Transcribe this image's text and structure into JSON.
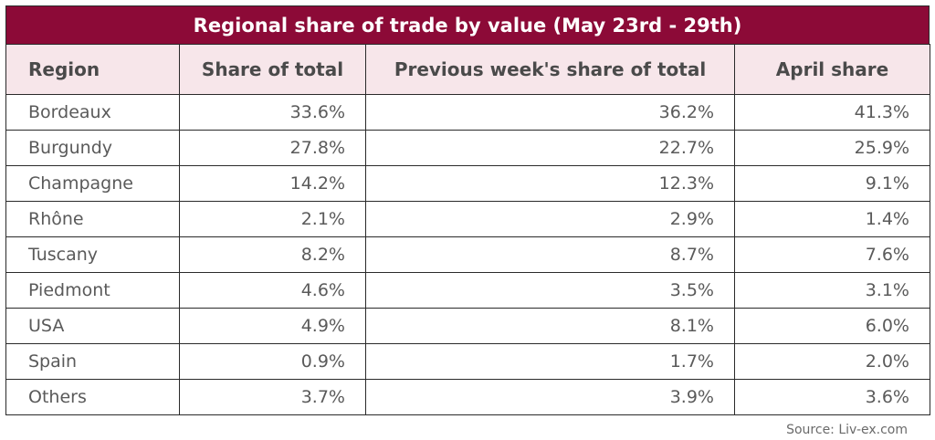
{
  "table": {
    "title": "Regional share of trade by value (May 23rd - 29th)",
    "columns": [
      "Region",
      "Share of total",
      "Previous week's share of total",
      "April share"
    ],
    "rows": [
      [
        "Bordeaux",
        "33.6%",
        "36.2%",
        "41.3%"
      ],
      [
        "Burgundy",
        "27.8%",
        "22.7%",
        "25.9%"
      ],
      [
        "Champagne",
        "14.2%",
        "12.3%",
        "9.1%"
      ],
      [
        "Rhône",
        "2.1%",
        "2.9%",
        "1.4%"
      ],
      [
        "Tuscany",
        "8.2%",
        "8.7%",
        "7.6%"
      ],
      [
        "Piedmont",
        "4.6%",
        "3.5%",
        "3.1%"
      ],
      [
        "USA",
        "4.9%",
        "8.1%",
        "6.0%"
      ],
      [
        "Spain",
        "0.9%",
        "1.7%",
        "2.0%"
      ],
      [
        "Others",
        "3.7%",
        "3.9%",
        "3.6%"
      ]
    ],
    "source": "Source: Liv-ex.com"
  },
  "colors": {
    "title_background": "#8c0a37",
    "header_background": "#f7e6ea",
    "border": "#2a2a2a"
  },
  "chart_data": {
    "type": "table",
    "title": "Regional share of trade by value (May 23rd - 29th)",
    "columns": [
      "Region",
      "Share of total",
      "Previous week's share of total",
      "April share"
    ],
    "categories": [
      "Bordeaux",
      "Burgundy",
      "Champagne",
      "Rhône",
      "Tuscany",
      "Piedmont",
      "USA",
      "Spain",
      "Others"
    ],
    "series": [
      {
        "name": "Share of total",
        "values": [
          33.6,
          27.8,
          14.2,
          2.1,
          8.2,
          4.6,
          4.9,
          0.9,
          3.7
        ]
      },
      {
        "name": "Previous week's share of total",
        "values": [
          36.2,
          22.7,
          12.3,
          2.9,
          8.7,
          3.5,
          8.1,
          1.7,
          3.9
        ]
      },
      {
        "name": "April share",
        "values": [
          41.3,
          25.9,
          9.1,
          1.4,
          7.6,
          3.1,
          6.0,
          2.0,
          3.6
        ]
      }
    ]
  }
}
